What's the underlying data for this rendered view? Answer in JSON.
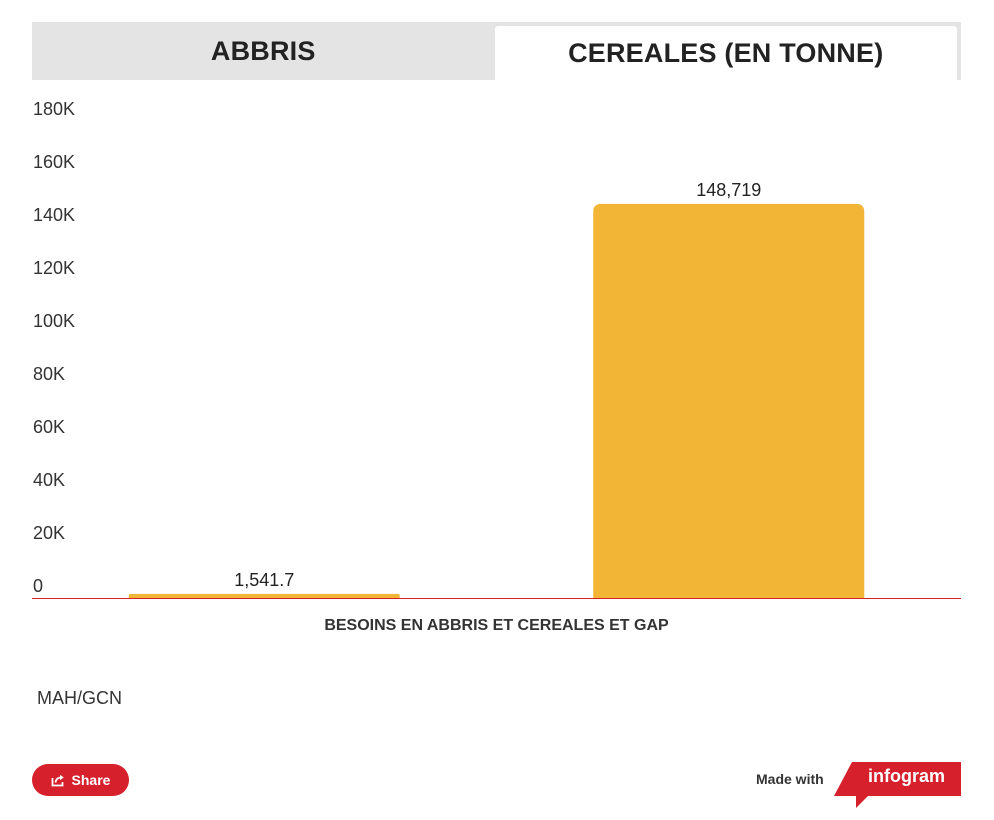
{
  "tabs": [
    {
      "label": "ABBRIS",
      "active": false
    },
    {
      "label": "CEREALES (EN TONNE)",
      "active": true
    }
  ],
  "chart_data": {
    "type": "bar",
    "title": "",
    "xlabel": "BESOINS EN ABBRIS ET CEREALES ET GAP",
    "ylabel": "",
    "categories": [
      "",
      ""
    ],
    "values": [
      1541.7,
      148719
    ],
    "value_labels": [
      "1,541.7",
      "148,719"
    ],
    "ylim": [
      0,
      180000
    ],
    "yticks": [
      0,
      20000,
      40000,
      60000,
      80000,
      100000,
      120000,
      140000,
      160000,
      180000
    ],
    "ytick_labels": [
      "0",
      "20K",
      "40K",
      "60K",
      "80K",
      "100K",
      "120K",
      "140K",
      "160K",
      "180K"
    ],
    "grid": false,
    "colors": {
      "bar": "#f2b535",
      "baseline": "#d6202c"
    }
  },
  "source": "MAH/GCN",
  "share": {
    "label": "Share",
    "icon": "share-icon"
  },
  "footer": {
    "made_with": "Made with",
    "brand": "infogram",
    "brand_color": "#d6202c"
  }
}
